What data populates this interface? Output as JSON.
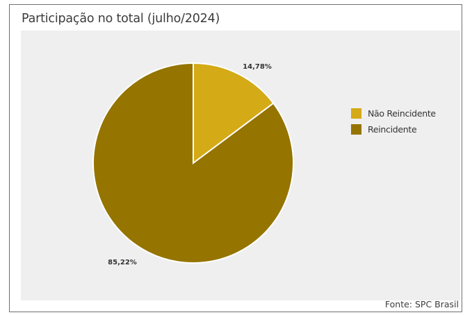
{
  "chart_data": {
    "type": "pie",
    "title": "Participação no total (julho/2024)",
    "slices": [
      {
        "label": "Não Reincidente",
        "value": 14.78,
        "value_label": "14,78%",
        "color": "#d4aa16"
      },
      {
        "label": "Reincidente",
        "value": 85.22,
        "value_label": "85,22%",
        "color": "#957400"
      }
    ],
    "legend_position": "right",
    "source": "Fonte: SPC Brasil"
  }
}
